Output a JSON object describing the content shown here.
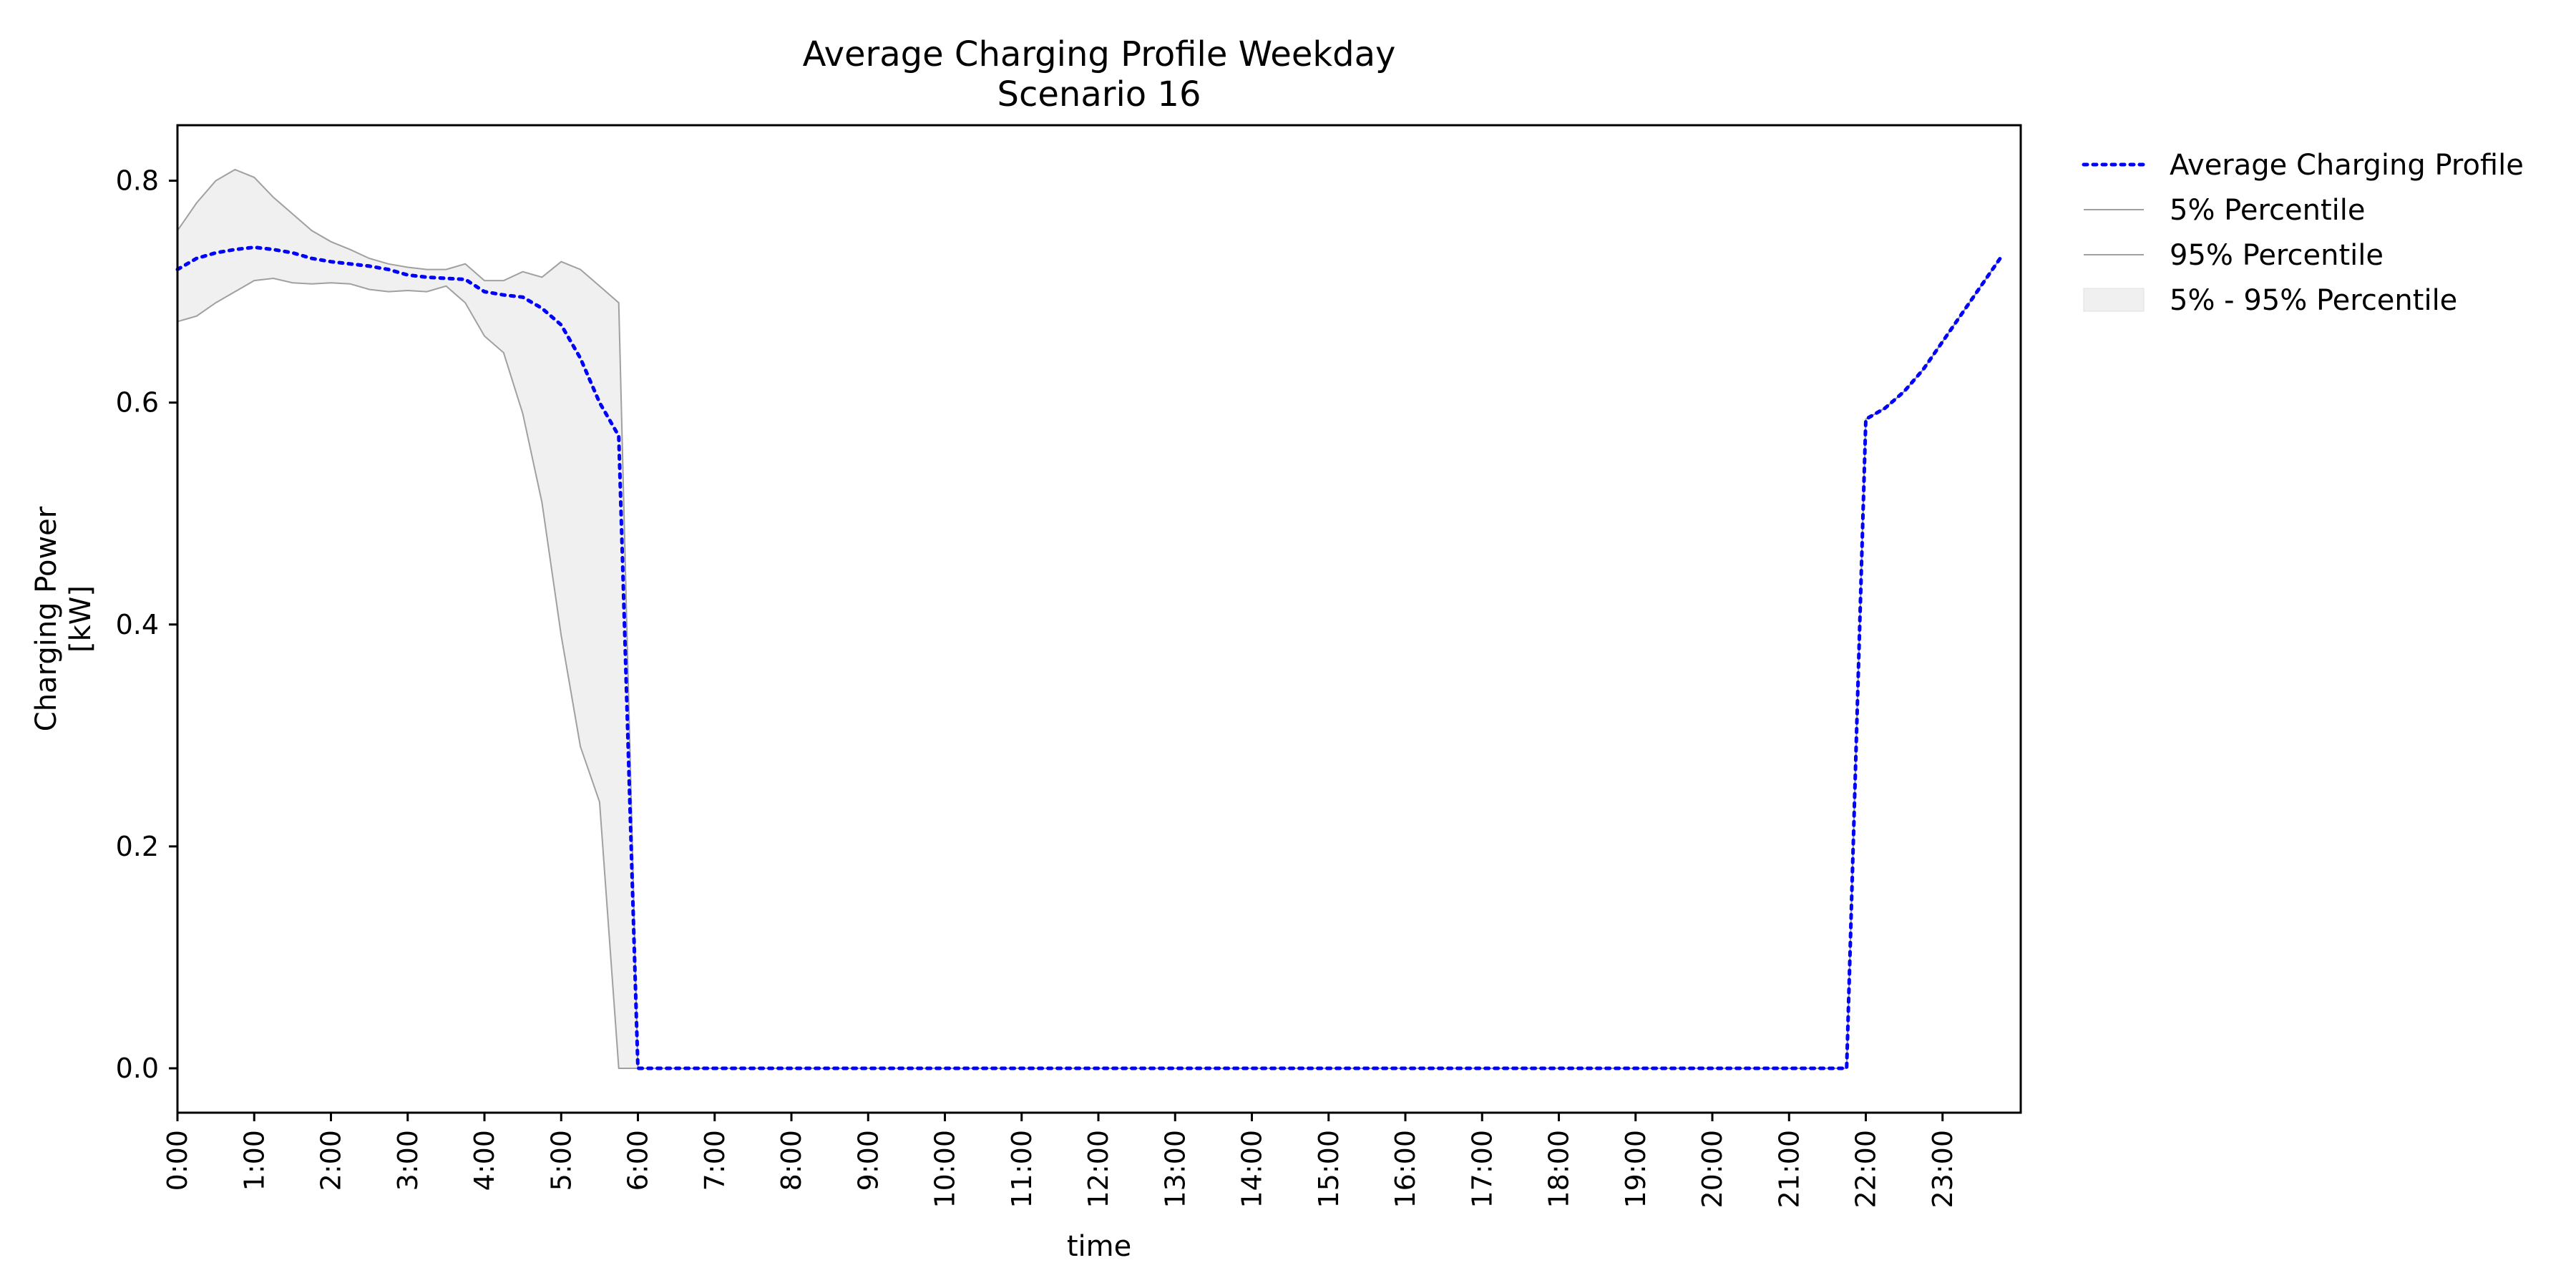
{
  "chart_data": {
    "type": "line",
    "title": "Average Charging Profile Weekday",
    "subtitle": "Scenario 16",
    "xlabel": "time",
    "ylabel": "Charging Power",
    "ylabel_unit": "[kW]",
    "ylim": [
      -0.04,
      0.85
    ],
    "xlim": [
      0,
      24
    ],
    "grid": false,
    "legend_placement": "outside-top-right",
    "x_ticks": [
      "0:00",
      "1:00",
      "2:00",
      "3:00",
      "4:00",
      "5:00",
      "6:00",
      "7:00",
      "8:00",
      "9:00",
      "10:00",
      "11:00",
      "12:00",
      "13:00",
      "14:00",
      "15:00",
      "16:00",
      "17:00",
      "18:00",
      "19:00",
      "20:00",
      "21:00",
      "22:00",
      "23:00"
    ],
    "y_ticks": [
      "0.0",
      "0.2",
      "0.4",
      "0.6",
      "0.8"
    ],
    "x_hours": [
      0,
      0.25,
      0.5,
      0.75,
      1,
      1.25,
      1.5,
      1.75,
      2,
      2.25,
      2.5,
      2.75,
      3,
      3.25,
      3.5,
      3.75,
      4,
      4.25,
      4.5,
      4.75,
      5,
      5.25,
      5.5,
      5.75,
      6,
      21.75,
      22,
      22.25,
      22.5,
      22.75,
      23,
      23.25,
      23.5,
      23.75
    ],
    "series": [
      {
        "name": "Average Charging Profile",
        "color": "#0000ff",
        "style": "dotted",
        "values": [
          0.72,
          0.73,
          0.735,
          0.738,
          0.74,
          0.738,
          0.735,
          0.73,
          0.727,
          0.725,
          0.723,
          0.72,
          0.715,
          0.713,
          0.712,
          0.711,
          0.7,
          0.697,
          0.695,
          0.685,
          0.67,
          0.64,
          0.6,
          0.57,
          0.0,
          0.0,
          0.585,
          0.595,
          0.61,
          0.63,
          0.655,
          0.68,
          0.705,
          0.73
        ]
      },
      {
        "name": "5% Percentile",
        "color": "#a0a0a0",
        "style": "solid",
        "values": [
          0.673,
          0.678,
          0.69,
          0.7,
          0.71,
          0.712,
          0.708,
          0.707,
          0.708,
          0.707,
          0.702,
          0.7,
          0.701,
          0.7,
          0.705,
          0.69,
          0.66,
          0.645,
          0.59,
          0.51,
          0.39,
          0.29,
          0.24,
          0.0,
          0.0,
          0.0,
          0.585,
          0.595,
          0.61,
          0.63,
          0.655,
          0.68,
          0.705,
          0.73
        ]
      },
      {
        "name": "95% Percentile",
        "color": "#a0a0a0",
        "style": "solid",
        "values": [
          0.755,
          0.78,
          0.8,
          0.81,
          0.803,
          0.785,
          0.77,
          0.755,
          0.745,
          0.738,
          0.73,
          0.725,
          0.722,
          0.72,
          0.72,
          0.725,
          0.71,
          0.71,
          0.718,
          0.713,
          0.727,
          0.72,
          0.705,
          0.69,
          0.0,
          0.0,
          0.585,
          0.595,
          0.61,
          0.63,
          0.655,
          0.68,
          0.705,
          0.73
        ]
      }
    ],
    "band": {
      "name": "5% - 95% Percentile",
      "color": "#f0f0f0"
    }
  }
}
